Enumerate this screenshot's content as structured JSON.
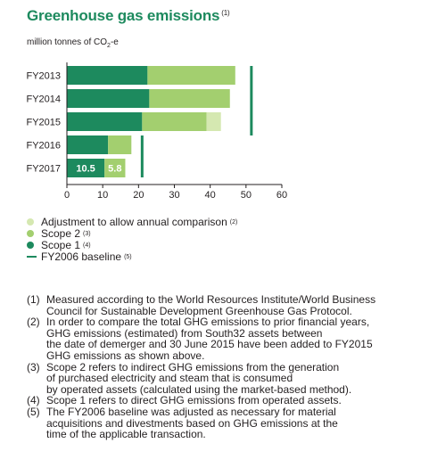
{
  "title": "Greenhouse gas emissions",
  "title_note": "(1)",
  "unit_label": {
    "prefix": "million tonnes of CO",
    "sub": "2",
    "suffix": "-e"
  },
  "colors": {
    "scope1": "#1d8a5e",
    "scope2": "#a3cf6f",
    "adjustment": "#d5e8b1",
    "baseline": "#1d8a5e",
    "axis": "#231f20",
    "title": "#1d8a5e"
  },
  "chart_data": {
    "type": "bar",
    "orientation": "horizontal",
    "stacked": true,
    "categories": [
      "FY2013",
      "FY2014",
      "FY2015",
      "FY2016",
      "FY2017"
    ],
    "series": [
      {
        "name": "Scope 1",
        "key": "scope1",
        "values": [
          22.5,
          23.0,
          21.0,
          11.5,
          10.5
        ]
      },
      {
        "name": "Scope 2",
        "key": "scope2",
        "values": [
          24.5,
          22.5,
          18.0,
          6.5,
          5.8
        ]
      },
      {
        "name": "Adjustment to allow annual comparison",
        "key": "adjustment",
        "values": [
          0,
          0,
          4.0,
          0,
          0
        ]
      }
    ],
    "baseline": {
      "name": "FY2006 baseline",
      "values": [
        51.5,
        51.5,
        51.5,
        21.0,
        21.0
      ]
    },
    "data_labels": [
      {
        "category": "FY2017",
        "series": "scope1",
        "text": "10.5"
      },
      {
        "category": "FY2017",
        "series": "scope2",
        "text": "5.8"
      }
    ],
    "x_ticks": [
      "0",
      "10",
      "20",
      "30",
      "40",
      "50",
      "60"
    ],
    "xlim": [
      0,
      60
    ],
    "grid": false
  },
  "legend": [
    {
      "key": "adjustment",
      "label": "Adjustment to allow annual comparison",
      "note": "(2)",
      "shape": "dot"
    },
    {
      "key": "scope2",
      "label": "Scope 2",
      "note": "(3)",
      "shape": "dot"
    },
    {
      "key": "scope1",
      "label": "Scope 1",
      "note": "(4)",
      "shape": "dot"
    },
    {
      "key": "baseline",
      "label": "FY2006 baseline",
      "note": "(5)",
      "shape": "line"
    }
  ],
  "notes": [
    {
      "num": "(1)",
      "lines": [
        "Measured according to the World Resources Institute/World Business",
        "Council for Sustainable Development Greenhouse Gas Protocol."
      ]
    },
    {
      "num": "(2)",
      "lines": [
        "In order to compare the total GHG emissions to prior financial years,",
        "GHG emissions (estimated) from South32 assets between",
        "the date of demerger and 30 June 2015 have been added to FY2015",
        "GHG emissions as shown above."
      ]
    },
    {
      "num": "(3)",
      "lines": [
        "Scope 2 refers to indirect GHG emissions from the generation",
        "of purchased electricity and steam that is consumed",
        "by operated assets (calculated using the market-based method)."
      ]
    },
    {
      "num": "(4)",
      "lines": [
        "Scope 1 refers to direct GHG emissions from operated assets."
      ]
    },
    {
      "num": "(5)",
      "lines": [
        "The FY2006 baseline was adjusted as necessary for material",
        "acquisitions and divestments based on GHG emissions at the",
        "time of the applicable transaction."
      ]
    }
  ]
}
